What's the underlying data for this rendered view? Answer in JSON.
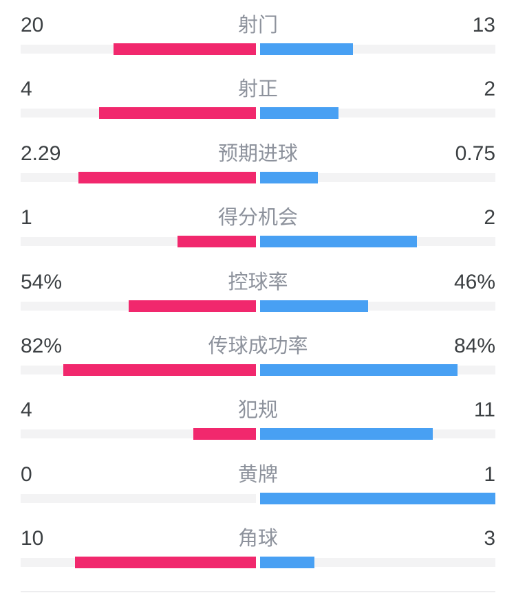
{
  "colors": {
    "home": "#f1286d",
    "away": "#48a0f3",
    "track": "#f3f3f4",
    "number_text": "#3c4043",
    "label_text": "#8d929c",
    "divider": "#ededef"
  },
  "rows": [
    {
      "label": "射门",
      "left_value": "20",
      "right_value": "13",
      "left_pct": 60.61,
      "right_pct": 39.39
    },
    {
      "label": "射正",
      "left_value": "4",
      "right_value": "2",
      "left_pct": 66.67,
      "right_pct": 33.33
    },
    {
      "label": "预期进球",
      "left_value": "2.29",
      "right_value": "0.75",
      "left_pct": 75.33,
      "right_pct": 24.67
    },
    {
      "label": "得分机会",
      "left_value": "1",
      "right_value": "2",
      "left_pct": 33.33,
      "right_pct": 66.67
    },
    {
      "label": "控球率",
      "left_value": "54%",
      "right_value": "46%",
      "left_pct": 54,
      "right_pct": 46
    },
    {
      "label": "传球成功率",
      "left_value": "82%",
      "right_value": "84%",
      "left_pct": 82,
      "right_pct": 84
    },
    {
      "label": "犯规",
      "left_value": "4",
      "right_value": "11",
      "left_pct": 26.67,
      "right_pct": 73.33
    },
    {
      "label": "黄牌",
      "left_value": "0",
      "right_value": "1",
      "left_pct": 0,
      "right_pct": 100
    },
    {
      "label": "角球",
      "left_value": "10",
      "right_value": "3",
      "left_pct": 76.92,
      "right_pct": 23.08
    }
  ],
  "chart_data": {
    "type": "bar",
    "subtype": "head-to-head comparison, bars grow outward from center",
    "title": "",
    "categories": [
      "射门",
      "射正",
      "预期进球",
      "得分机会",
      "控球率",
      "传球成功率",
      "犯规",
      "黄牌",
      "角球"
    ],
    "series": [
      {
        "name": "home",
        "color": "#f1286d",
        "side": "left",
        "values": [
          20,
          4,
          2.29,
          1,
          54,
          82,
          4,
          0,
          10
        ]
      },
      {
        "name": "away",
        "color": "#48a0f3",
        "side": "right",
        "values": [
          13,
          2,
          0.75,
          2,
          46,
          84,
          11,
          1,
          3
        ]
      }
    ],
    "percent_categories": [
      "控球率",
      "传球成功率"
    ],
    "bar_scaling": "count stats scaled by value/(home+away) of half track; percent stats scaled by value/100 of half track",
    "legend_position": "none",
    "grid": false
  }
}
